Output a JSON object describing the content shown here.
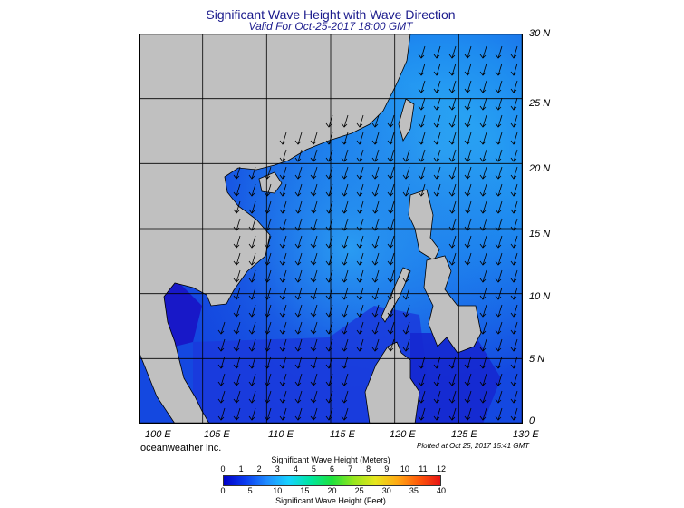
{
  "header": {
    "title": "Significant Wave Height with Wave Direction",
    "subtitle": "Valid For Oct-25-2017 18:00 GMT"
  },
  "map": {
    "lat_labels": [
      "30 N",
      "25 N",
      "20 N",
      "15 N",
      "10 N",
      "5 N",
      "0"
    ],
    "lon_labels": [
      "100 E",
      "105 E",
      "110 E",
      "115 E",
      "120 E",
      "125 E",
      "130 E"
    ],
    "land_color": "#c0c0c0",
    "sea_color_low": "#1a1adc",
    "sea_color_high": "#2aa6f0"
  },
  "footer": {
    "brand": "oceanweather inc.",
    "plotted": "Plotted at Oct 25, 2017 15:41 GMT"
  },
  "scale": {
    "title_meters": "Significant Wave Height (Meters)",
    "title_feet": "Significant Wave Height (Feet)",
    "meters_ticks": [
      "0",
      "1",
      "2",
      "3",
      "4",
      "5",
      "6",
      "7",
      "8",
      "9",
      "10",
      "11",
      "12"
    ],
    "feet_ticks": [
      "0",
      "5",
      "10",
      "15",
      "20",
      "25",
      "30",
      "35",
      "40"
    ],
    "colors": [
      "#0000c8",
      "#0a3cf0",
      "#1f8cff",
      "#17d2ff",
      "#00e6a0",
      "#1ee13c",
      "#96e61e",
      "#e6e61e",
      "#ffaa14",
      "#ff5a0a",
      "#e61414"
    ]
  }
}
